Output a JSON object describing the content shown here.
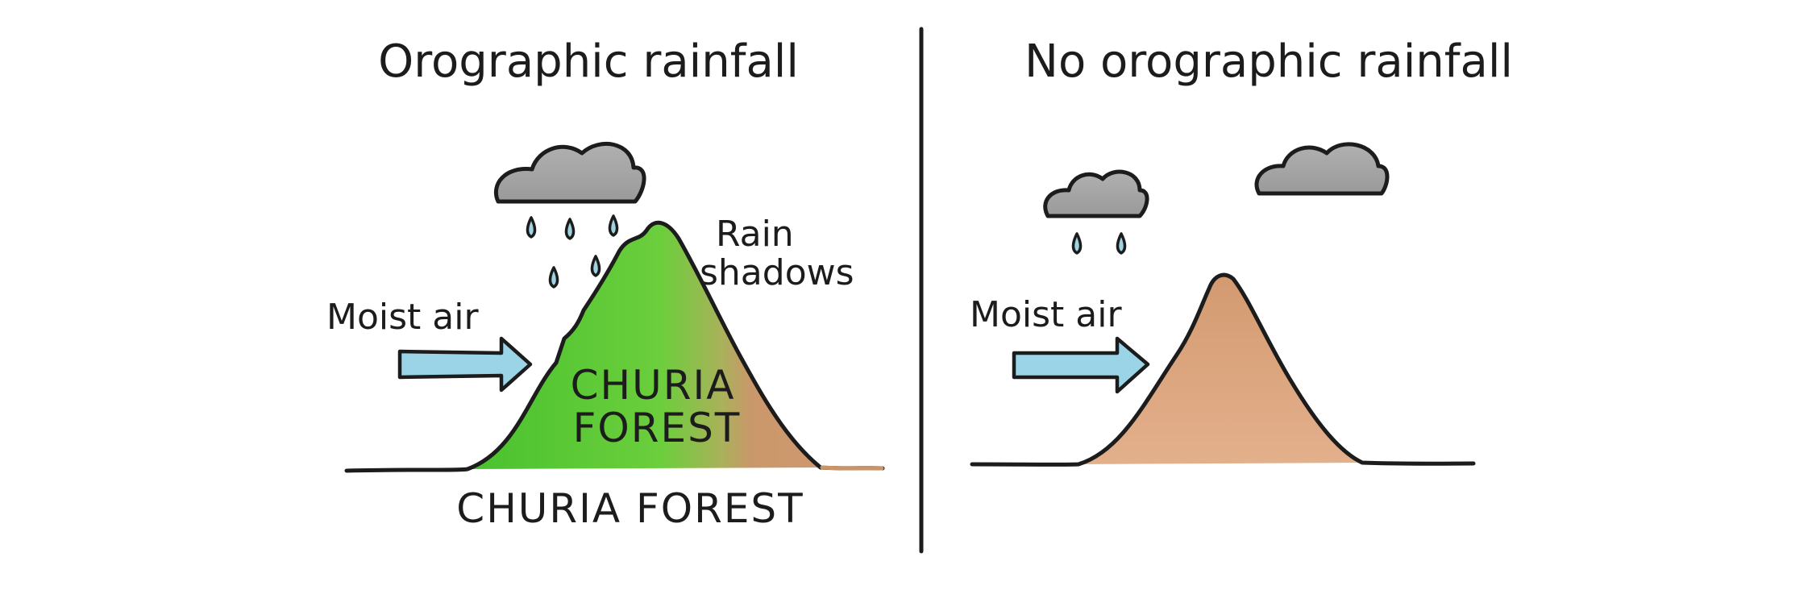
{
  "left_panel": {
    "title": "Orographic rainfall",
    "moist_air_label": "Moist air",
    "rain_shadow_line1": "Rain",
    "rain_shadow_line2": "shadows",
    "mountain_label_line1": "CHURIA",
    "mountain_label_line2": "FOREST",
    "ground_label": "CHURIA FOREST"
  },
  "right_panel": {
    "title": "No orographic rainfall",
    "moist_air_label": "Moist air"
  },
  "colors": {
    "ink": "#1c1c1c",
    "cloud": "#a6a6a6",
    "rain": "#9fd3e0",
    "arrow": "#9ad4e6",
    "forest_green": "#5cc93c",
    "dry_brown": "#d9a37c"
  },
  "icons": {
    "cloud": "cloud-icon",
    "raindrop": "raindrop-icon",
    "arrow": "arrow-right-icon"
  }
}
